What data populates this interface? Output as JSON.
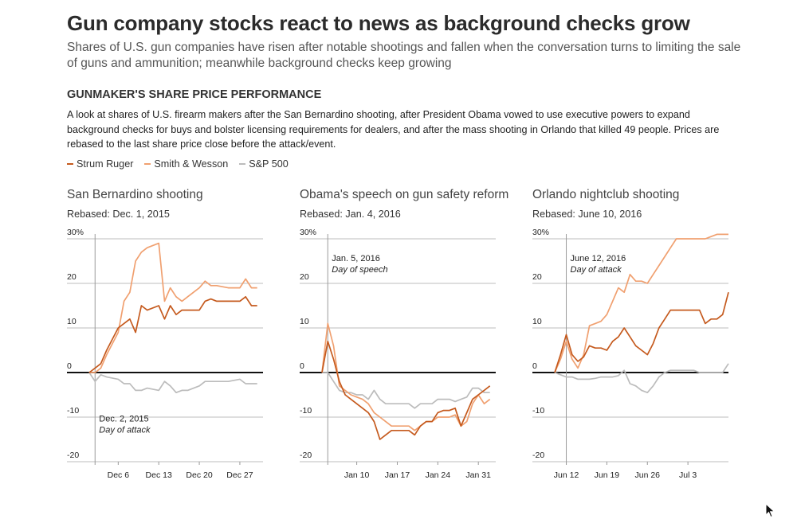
{
  "header": {
    "title": "Gun company stocks react to news as background checks grow",
    "subtitle": "Shares of U.S. gun companies have risen after notable shootings and fallen when the conversation turns to limiting the sale of guns and ammunition; meanwhile background checks keep growing"
  },
  "section": {
    "title": "GUNMAKER'S SHARE PRICE PERFORMANCE",
    "description": "A look at shares of U.S. firearm makers after the San Bernardino shooting, after President Obama vowed to use executive powers to expand background checks for buys and bolster licensing requirements for dealers, and after the mass shooting in Orlando that killed 49 people. Prices are rebased to the last share price close before the attack/event."
  },
  "legend": [
    {
      "label": "Strum Ruger",
      "color": "#c55a1e"
    },
    {
      "label": "Smith & Wesson",
      "color": "#f0a070"
    },
    {
      "label": "S&P 500",
      "color": "#bcbcbc"
    }
  ],
  "chart_data": [
    {
      "type": "line",
      "title": "San Bernardino shooting",
      "subtitle": "Rebased: Dec. 1, 2015",
      "ylim": [
        -20,
        30
      ],
      "y_ticks": [
        30,
        20,
        10,
        0,
        -10,
        -20
      ],
      "y_tick_labels": [
        "30%",
        "20",
        "10",
        "0",
        "-10",
        "-20"
      ],
      "xlim": [
        0,
        30
      ],
      "x_tick_values": [
        5,
        12,
        19,
        26
      ],
      "x_tick_labels": [
        "Dec 6",
        "Dec 13",
        "Dec 20",
        "Dec 27"
      ],
      "event": {
        "x": 1,
        "label": "Dec. 2, 2015",
        "sublabel": "Day of attack",
        "label_pos": "bottom"
      },
      "series": [
        {
          "name": "Strum Ruger",
          "color": "#c55a1e",
          "x": [
            0,
            1,
            2,
            3,
            5,
            6,
            7,
            8,
            9,
            10,
            12,
            13,
            14,
            15,
            16,
            17,
            19,
            20,
            21,
            22,
            24,
            26,
            27,
            28,
            29
          ],
          "y": [
            0,
            1,
            2,
            5,
            10,
            11,
            12,
            9,
            15,
            14,
            15,
            12,
            15,
            13,
            14,
            14,
            14,
            16,
            16.5,
            16,
            16,
            16,
            17,
            15,
            15
          ]
        },
        {
          "name": "Smith & Wesson",
          "color": "#f0a070",
          "x": [
            0,
            1,
            2,
            3,
            5,
            6,
            7,
            8,
            9,
            10,
            12,
            13,
            14,
            15,
            16,
            17,
            19,
            20,
            21,
            22,
            24,
            26,
            27,
            28,
            29
          ],
          "y": [
            0,
            0,
            1,
            4,
            9,
            16,
            18,
            25,
            27,
            28,
            29,
            16,
            19,
            17,
            16,
            17,
            19,
            20.5,
            19.5,
            19.5,
            19,
            19,
            21,
            19,
            19
          ]
        },
        {
          "name": "S&P 500",
          "color": "#bcbcbc",
          "x": [
            0,
            1,
            2,
            3,
            5,
            6,
            7,
            8,
            9,
            10,
            12,
            13,
            14,
            15,
            16,
            17,
            19,
            20,
            21,
            22,
            24,
            26,
            27,
            28,
            29
          ],
          "y": [
            0,
            -2,
            -0.5,
            -1,
            -1.5,
            -2.5,
            -2.5,
            -4,
            -4,
            -3.5,
            -4,
            -2,
            -3,
            -4.5,
            -4,
            -4,
            -3,
            -2,
            -2,
            -2,
            -2,
            -1.5,
            -2.5,
            -2.5,
            -2.5
          ]
        }
      ]
    },
    {
      "type": "line",
      "title": "Obama's speech on gun safety reform",
      "subtitle": "Rebased: Jan. 4, 2016",
      "ylim": [
        -20,
        30
      ],
      "y_ticks": [
        30,
        20,
        10,
        0,
        -10,
        -20
      ],
      "y_tick_labels": [
        "30%",
        "20",
        "10",
        "0",
        "-10",
        "-20"
      ],
      "xlim": [
        0,
        30
      ],
      "x_tick_values": [
        6,
        13,
        20,
        27
      ],
      "x_tick_labels": [
        "Jan 10",
        "Jan 17",
        "Jan 24",
        "Jan 31"
      ],
      "event": {
        "x": 1,
        "label": "Jan. 5, 2016",
        "sublabel": "Day of speech",
        "label_pos": "top"
      },
      "series": [
        {
          "name": "Strum Ruger",
          "color": "#c55a1e",
          "x": [
            0,
            1,
            2,
            3,
            4,
            5,
            6,
            7,
            8,
            9,
            10,
            11,
            12,
            13,
            14,
            15,
            16,
            17,
            18,
            19,
            20,
            21,
            22,
            23,
            24,
            25,
            26,
            27,
            28,
            29
          ],
          "y": [
            0,
            7,
            3,
            -2,
            -5,
            -6,
            -7,
            -8,
            -9,
            -11,
            -15,
            -14,
            -13,
            -13,
            -13,
            -13,
            -14,
            -12,
            -11,
            -11,
            -9,
            -8.5,
            -8.5,
            -8,
            -12,
            -9,
            -6,
            -5,
            -4,
            -3
          ]
        },
        {
          "name": "Smith & Wesson",
          "color": "#f0a070",
          "x": [
            0,
            1,
            2,
            3,
            4,
            5,
            6,
            7,
            8,
            9,
            10,
            11,
            12,
            13,
            14,
            15,
            16,
            17,
            18,
            19,
            20,
            21,
            22,
            23,
            24,
            25,
            26,
            27,
            28,
            29
          ],
          "y": [
            0,
            11,
            6,
            -3,
            -4,
            -5,
            -5.5,
            -6,
            -7,
            -9,
            -10,
            -11,
            -12,
            -12,
            -12,
            -12,
            -13,
            -12,
            -11,
            -11,
            -10,
            -10,
            -10,
            -9.5,
            -12,
            -11,
            -7,
            -5,
            -7,
            -6
          ]
        },
        {
          "name": "S&P 500",
          "color": "#bcbcbc",
          "x": [
            0,
            1,
            2,
            3,
            4,
            5,
            6,
            7,
            8,
            9,
            10,
            11,
            12,
            13,
            14,
            15,
            16,
            17,
            18,
            19,
            20,
            21,
            22,
            23,
            24,
            25,
            26,
            27,
            28,
            29
          ],
          "y": [
            0,
            0,
            -2,
            -4,
            -4.5,
            -4.5,
            -5,
            -5,
            -6,
            -4,
            -6,
            -7,
            -7,
            -7,
            -7,
            -7,
            -8,
            -7,
            -7,
            -7,
            -6,
            -6,
            -6,
            -6.5,
            -6,
            -5.5,
            -3.5,
            -3.5,
            -4.5,
            -4.5
          ]
        }
      ]
    },
    {
      "type": "line",
      "title": "Orlando nightclub shooting",
      "subtitle": "Rebased: June 10, 2016",
      "ylim": [
        -20,
        30
      ],
      "y_ticks": [
        30,
        20,
        10,
        0,
        -10,
        -20
      ],
      "y_tick_labels": [
        "30%",
        "20",
        "10",
        "0",
        "-10",
        "-20"
      ],
      "xlim": [
        0,
        30
      ],
      "x_tick_values": [
        2,
        9,
        16,
        23
      ],
      "x_tick_labels": [
        "Jun 12",
        "Jun 19",
        "Jun 26",
        "Jul 3"
      ],
      "event": {
        "x": 2,
        "label": "June 12, 2016",
        "sublabel": "Day of attack",
        "label_pos": "top"
      },
      "series": [
        {
          "name": "Strum Ruger",
          "color": "#c55a1e",
          "x": [
            0,
            1,
            2,
            3,
            4,
            5,
            6,
            7,
            8,
            9,
            10,
            11,
            12,
            13,
            14,
            15,
            16,
            17,
            18,
            19,
            20,
            21,
            22,
            23,
            24,
            25,
            26,
            27,
            28,
            29,
            30
          ],
          "y": [
            0,
            4,
            8.5,
            4,
            2.5,
            3.5,
            6,
            5.5,
            5.5,
            5,
            7,
            8,
            10,
            8,
            6,
            5,
            4,
            6.5,
            10,
            12,
            14,
            14,
            14,
            14,
            14,
            14,
            11,
            12,
            12,
            13,
            18
          ]
        },
        {
          "name": "Smith & Wesson",
          "color": "#f0a070",
          "x": [
            0,
            1,
            2,
            3,
            4,
            5,
            6,
            7,
            8,
            9,
            10,
            11,
            12,
            13,
            14,
            15,
            16,
            17,
            18,
            19,
            20,
            21,
            22,
            23,
            24,
            25,
            26,
            27,
            28,
            29,
            30
          ],
          "y": [
            0,
            3,
            7,
            3,
            1,
            4,
            10.5,
            11,
            11.5,
            13,
            16,
            19,
            18,
            22,
            20.5,
            20.5,
            20,
            22,
            24,
            26,
            28,
            30,
            30,
            30,
            30,
            30,
            30,
            30.5,
            31,
            31,
            31
          ]
        },
        {
          "name": "S&P 500",
          "color": "#bcbcbc",
          "x": [
            0,
            1,
            2,
            3,
            4,
            5,
            6,
            7,
            8,
            9,
            10,
            11,
            12,
            13,
            14,
            15,
            16,
            17,
            18,
            19,
            20,
            21,
            22,
            23,
            24,
            25,
            26,
            27,
            28,
            29,
            30
          ],
          "y": [
            0,
            -0.5,
            -1,
            -1,
            -1.5,
            -1.5,
            -1.5,
            -1.3,
            -1,
            -1,
            -1,
            -0.7,
            0.5,
            -2.5,
            -3,
            -4,
            -4.5,
            -3,
            -1,
            0,
            0.5,
            0.5,
            0.5,
            0.5,
            0.5,
            0,
            0,
            0,
            0,
            0,
            2
          ]
        }
      ]
    }
  ]
}
